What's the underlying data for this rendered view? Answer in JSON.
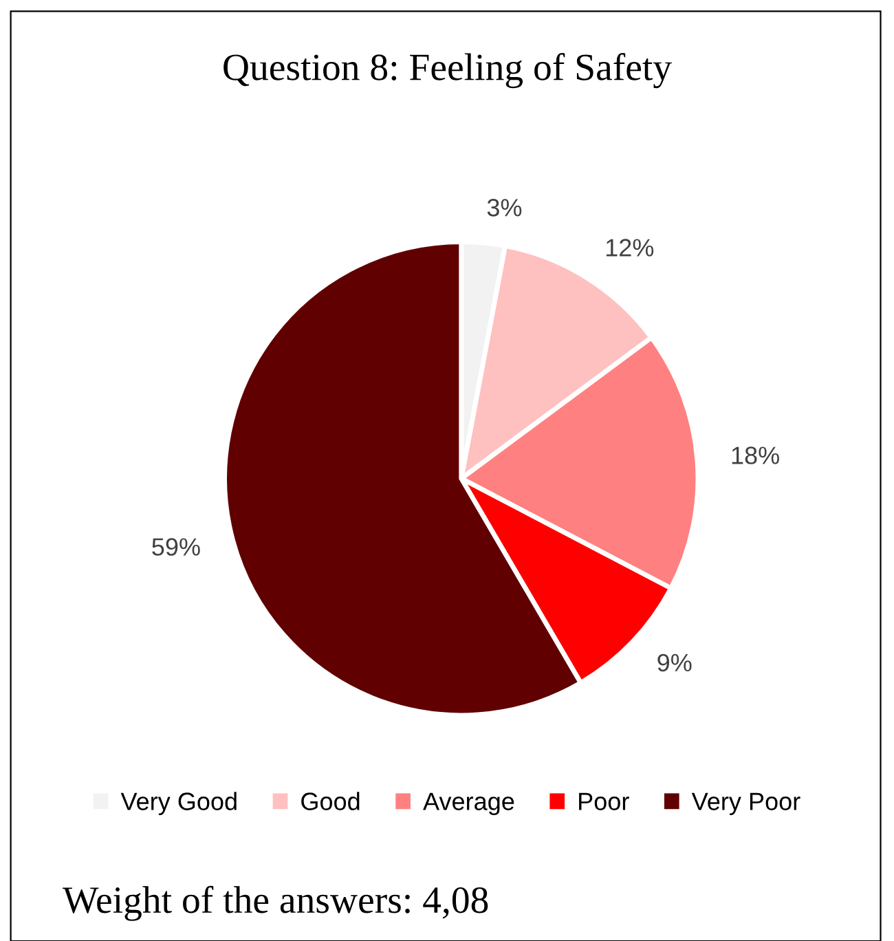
{
  "chart_data": {
    "type": "pie",
    "title": "Question 8: Feeling of Safety",
    "categories": [
      "Very Good",
      "Good",
      "Average",
      "Poor",
      "Very Poor"
    ],
    "values": [
      3,
      12,
      18,
      9,
      59
    ],
    "value_labels": [
      "3%",
      "12%",
      "18%",
      "9%",
      "59%"
    ],
    "colors": [
      "#f2f2f2",
      "#ffc0c0",
      "#ff8080",
      "#ff0000",
      "#600000"
    ],
    "legend": "bottom",
    "annotations": [
      "Weight of the answers: 4,08"
    ]
  }
}
